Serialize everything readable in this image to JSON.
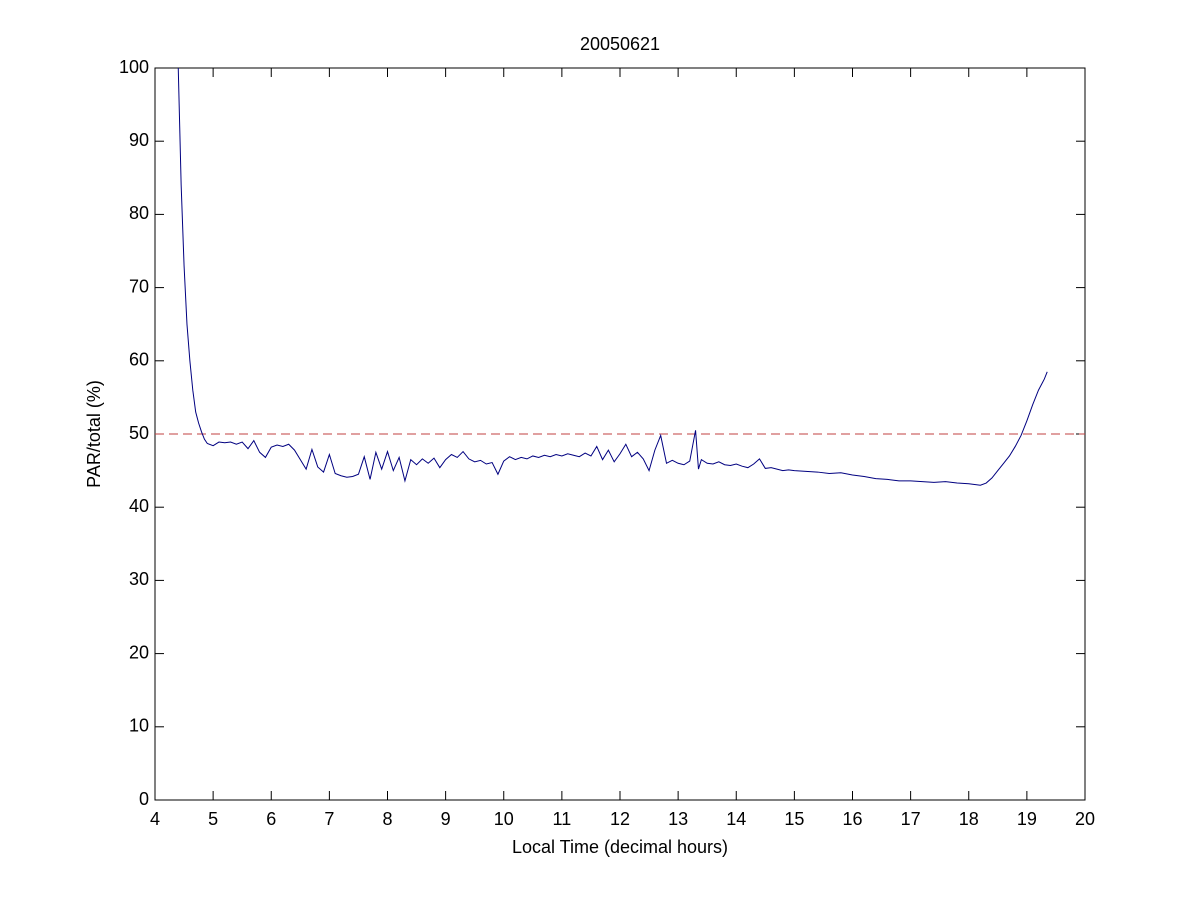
{
  "chart_data": {
    "type": "line",
    "title": "20050621",
    "xlabel": "Local Time (decimal hours)",
    "ylabel": "PAR/total (%)",
    "xlim": [
      4,
      20
    ],
    "xticks": [
      4,
      5,
      6,
      7,
      8,
      9,
      10,
      11,
      12,
      13,
      14,
      15,
      16,
      17,
      18,
      19,
      20
    ],
    "ylim": [
      0,
      100
    ],
    "yticks": [
      0,
      10,
      20,
      30,
      40,
      50,
      60,
      70,
      80,
      90,
      100
    ],
    "grid": false,
    "reference_line": {
      "value": 50,
      "color": "#c04040",
      "style": "dashed"
    },
    "series": [
      {
        "color": "#000080",
        "x": [
          4.4,
          4.45,
          4.5,
          4.55,
          4.6,
          4.65,
          4.7,
          4.75,
          4.8,
          4.85,
          4.9,
          5.0,
          5.1,
          5.2,
          5.3,
          5.4,
          5.5,
          5.6,
          5.7,
          5.8,
          5.9,
          6.0,
          6.1,
          6.2,
          6.3,
          6.4,
          6.5,
          6.6,
          6.7,
          6.8,
          6.9,
          7.0,
          7.1,
          7.2,
          7.3,
          7.4,
          7.5,
          7.6,
          7.7,
          7.8,
          7.9,
          8.0,
          8.1,
          8.2,
          8.3,
          8.4,
          8.5,
          8.6,
          8.7,
          8.8,
          8.9,
          9.0,
          9.1,
          9.2,
          9.3,
          9.4,
          9.5,
          9.6,
          9.7,
          9.8,
          9.9,
          10.0,
          10.1,
          10.2,
          10.3,
          10.4,
          10.5,
          10.6,
          10.7,
          10.8,
          10.9,
          11.0,
          11.1,
          11.2,
          11.3,
          11.4,
          11.5,
          11.6,
          11.7,
          11.8,
          11.9,
          12.0,
          12.1,
          12.2,
          12.3,
          12.4,
          12.5,
          12.6,
          12.7,
          12.8,
          12.9,
          13.0,
          13.1,
          13.2,
          13.3,
          13.35,
          13.4,
          13.5,
          13.6,
          13.7,
          13.8,
          13.9,
          14.0,
          14.1,
          14.2,
          14.3,
          14.4,
          14.5,
          14.6,
          14.7,
          14.8,
          14.9,
          15.0,
          15.2,
          15.4,
          15.6,
          15.8,
          16.0,
          16.2,
          16.4,
          16.6,
          16.8,
          17.0,
          17.2,
          17.4,
          17.6,
          17.8,
          18.0,
          18.2,
          18.3,
          18.4,
          18.5,
          18.6,
          18.7,
          18.8,
          18.9,
          19.0,
          19.1,
          19.2,
          19.3,
          19.35
        ],
        "values": [
          100,
          84,
          73,
          65,
          60,
          56,
          53,
          51.5,
          50.3,
          49.3,
          48.7,
          48.4,
          48.9,
          48.8,
          48.9,
          48.6,
          48.9,
          48.0,
          49.1,
          47.5,
          46.8,
          48.2,
          48.5,
          48.3,
          48.6,
          47.8,
          46.5,
          45.2,
          47.9,
          45.5,
          44.8,
          47.2,
          44.6,
          44.3,
          44.1,
          44.2,
          44.5,
          46.9,
          43.8,
          47.5,
          45.2,
          47.6,
          45.0,
          46.8,
          43.6,
          46.5,
          45.8,
          46.6,
          46.0,
          46.7,
          45.4,
          46.5,
          47.2,
          46.8,
          47.6,
          46.6,
          46.2,
          46.4,
          45.9,
          46.1,
          44.5,
          46.3,
          46.9,
          46.5,
          46.8,
          46.6,
          47.0,
          46.8,
          47.1,
          46.9,
          47.2,
          47.0,
          47.3,
          47.1,
          46.9,
          47.4,
          47.0,
          48.3,
          46.5,
          47.8,
          46.2,
          47.3,
          48.6,
          46.9,
          47.5,
          46.6,
          45.0,
          47.8,
          49.8,
          46.0,
          46.4,
          46.0,
          45.8,
          46.3,
          50.5,
          45.2,
          46.5,
          46.0,
          45.9,
          46.2,
          45.8,
          45.7,
          45.9,
          45.6,
          45.4,
          45.9,
          46.6,
          45.3,
          45.4,
          45.2,
          45.0,
          45.1,
          45.0,
          44.9,
          44.8,
          44.6,
          44.7,
          44.4,
          44.2,
          43.9,
          43.8,
          43.6,
          43.6,
          43.5,
          43.4,
          43.5,
          43.3,
          43.2,
          43.0,
          43.3,
          44.0,
          45.0,
          46.0,
          47.0,
          48.3,
          49.8,
          51.8,
          54.0,
          56.0,
          57.5,
          58.5
        ]
      }
    ]
  }
}
